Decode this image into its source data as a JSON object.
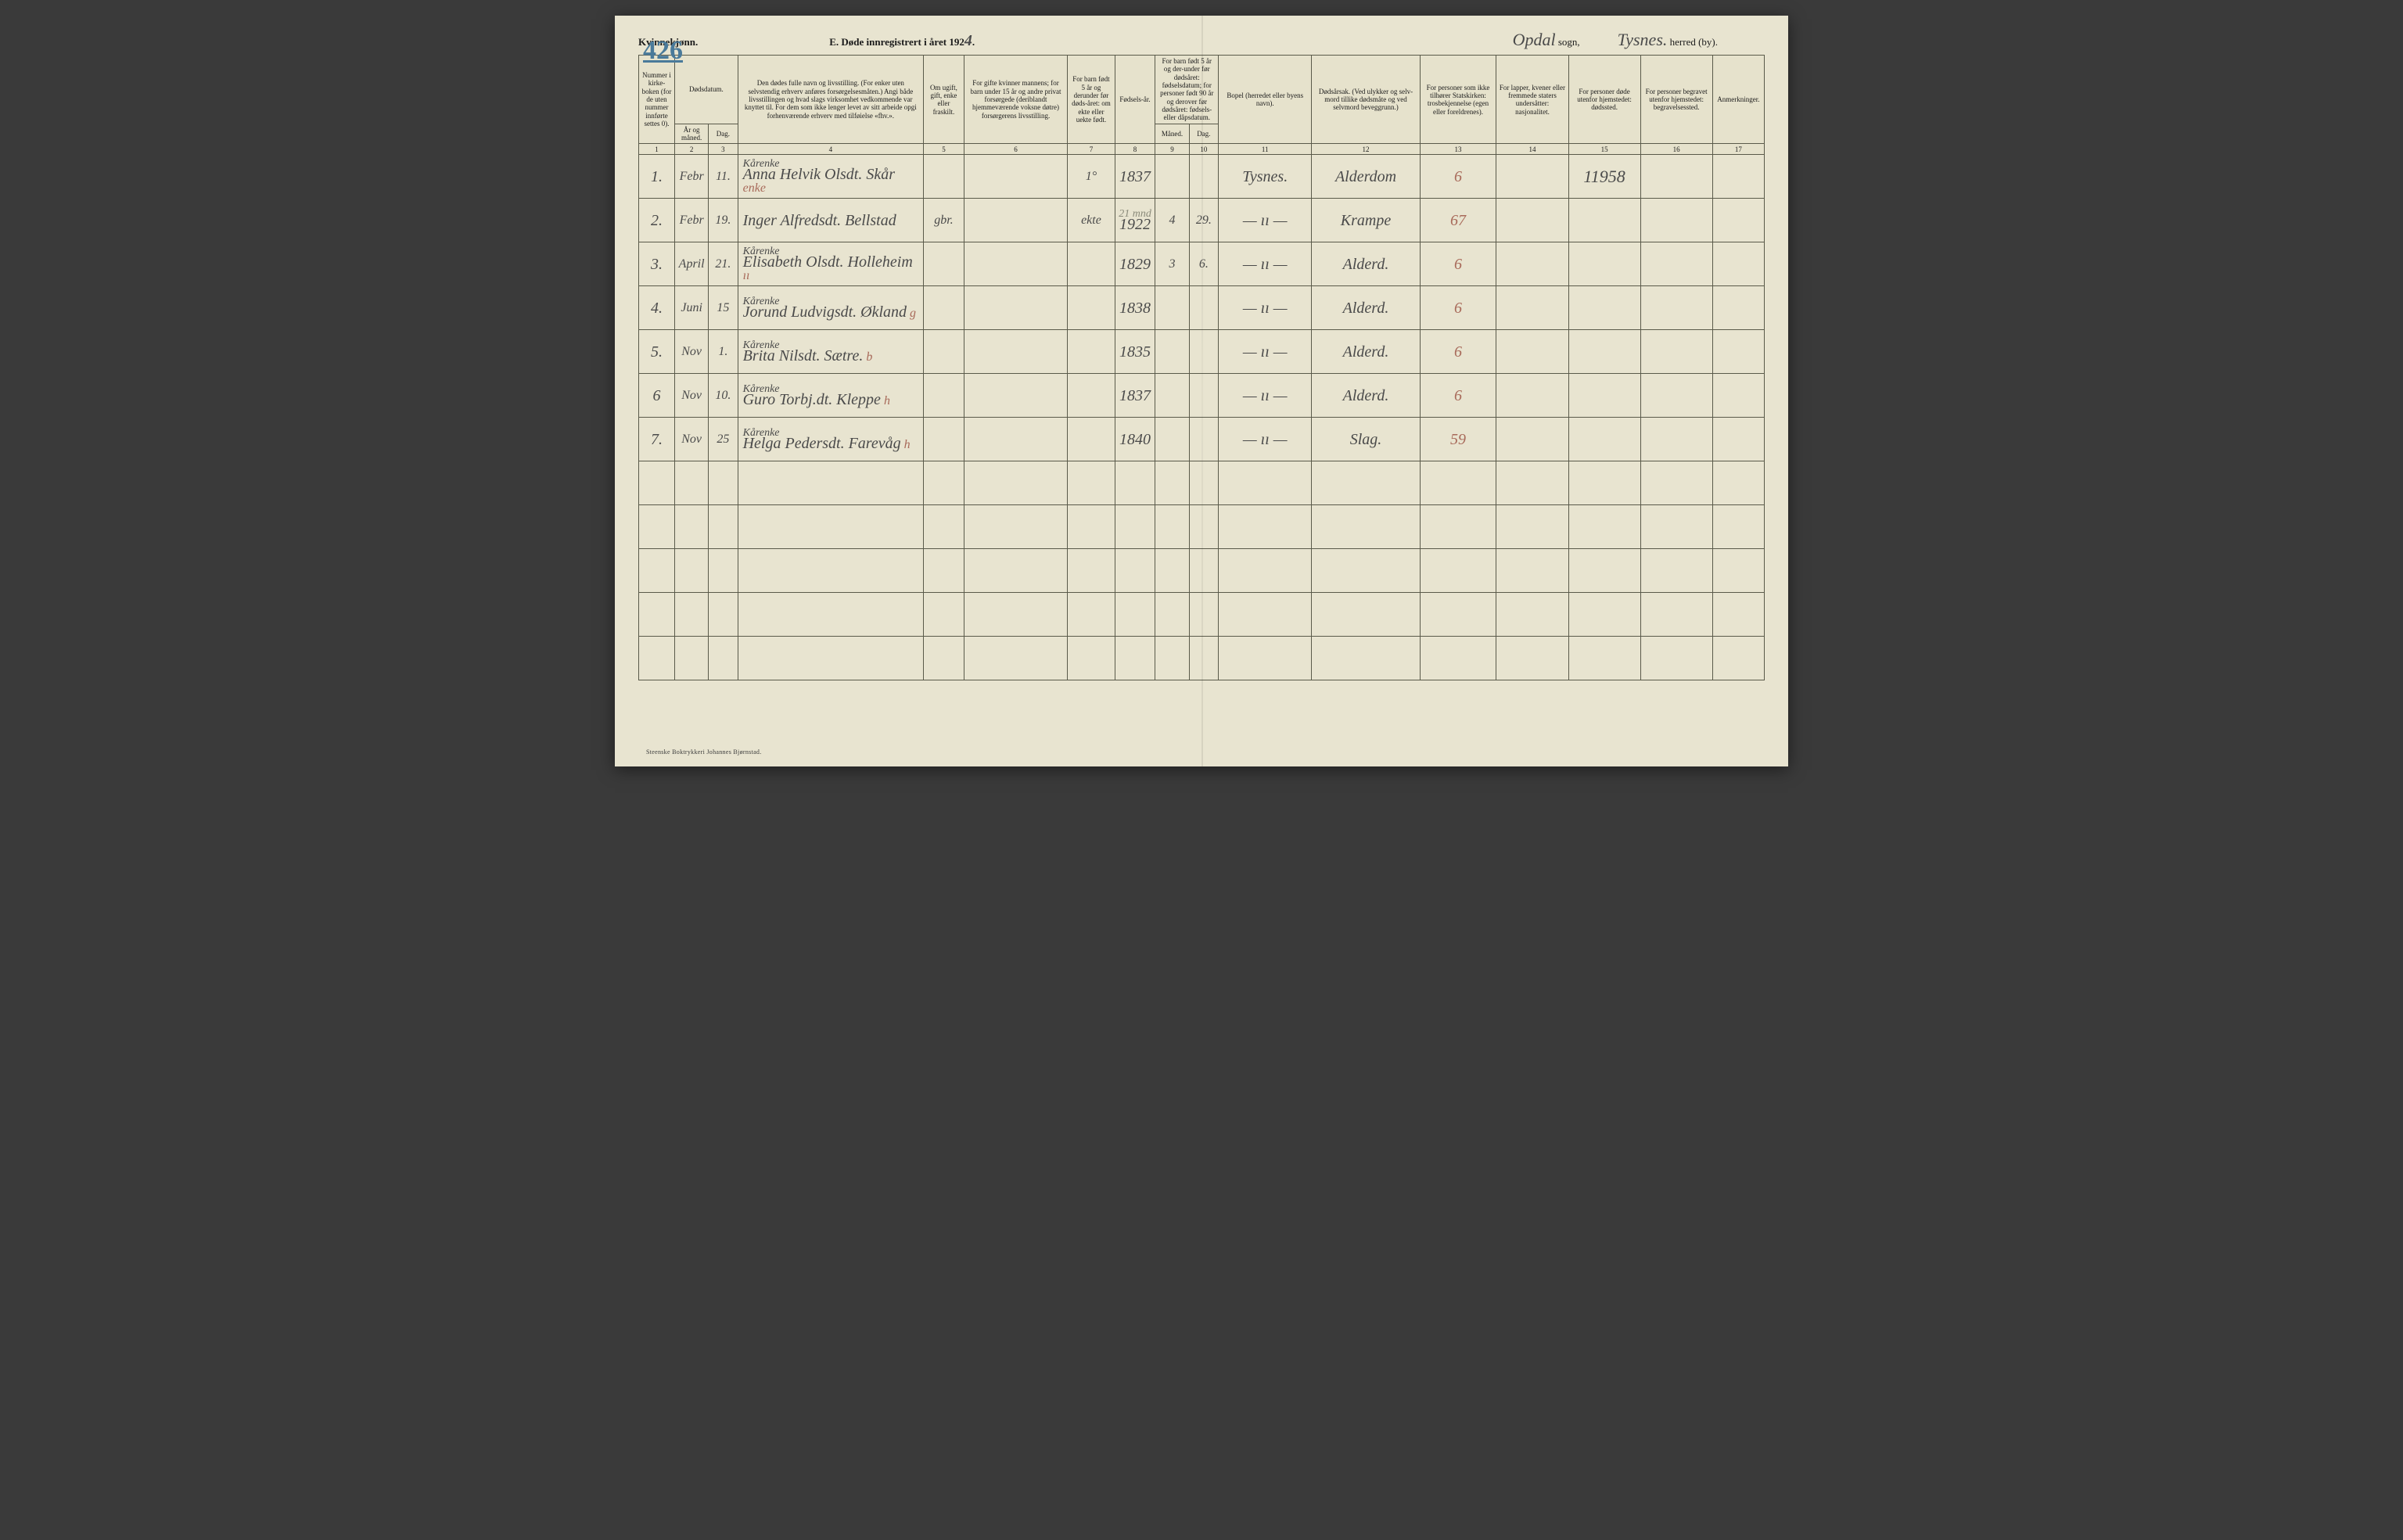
{
  "header": {
    "gender_label": "Kvinnekjønn.",
    "page_number_hw": "426",
    "title_prefix": "E.  Døde innregistrert i året 192",
    "year_suffix_hw": "4",
    "title_period": ".",
    "sogn_hw": "Opdal",
    "sogn_label": "sogn,",
    "herred_hw": "Tysnes.",
    "herred_label": "herred (by)."
  },
  "columns": {
    "c1": "Nummer i kirke-boken (for de uten nummer innførte settes 0).",
    "c2_3_group": "Dødsdatum.",
    "c2": "År og måned.",
    "c3": "Dag.",
    "c4": "Den dødes fulle navn og livsstilling. (For enker uten selvstendig erhverv anføres forsørgelsesmåten.) Angi både livsstillingen og hvad slags virksomhet vedkommende var knyttet til. For dem som ikke lenger levet av sitt arbeide opgi forhenværende erhverv med tilføielse «fhv.».",
    "c5": "Om ugift, gift, enke eller fraskilt.",
    "c6": "For gifte kvinner mannens; for barn under 15 år og andre privat forsørgede (deriblandt hjemmeværende voksne døtre) forsørgerens livsstilling.",
    "c7": "For barn født 5 år og derunder før døds-året: om ekte eller uekte født.",
    "c8": "Fødsels-år.",
    "c9_10_group": "For barn født 5 år og der-under før dødsåret: fødselsdatum; for personer født 90 år og derover før dødsåret: fødsels- eller dåpsdatum.",
    "c9": "Måned.",
    "c10": "Dag.",
    "c11": "Bopel (herredet eller byens navn).",
    "c12": "Dødsårsak. (Ved ulykker og selv-mord tillike dødsmåte og ved selvmord beveggrunn.)",
    "c13": "For personer som ikke tilhører Statskirken: trosbekjennelse (egen eller foreldrenes).",
    "c14": "For lapper, kvener eller fremmede staters undersåtter: nasjonalitet.",
    "c15": "For personer døde utenfor hjemstedet: dødssted.",
    "c16": "For personer begravet utenfor hjemstedet: begravelsessted.",
    "c17": "Anmerkninger."
  },
  "colnums": [
    "1",
    "2",
    "3",
    "4",
    "5",
    "6",
    "7",
    "8",
    "9",
    "10",
    "11",
    "12",
    "13",
    "14",
    "15",
    "16",
    "17"
  ],
  "rows": [
    {
      "n": "1.",
      "mon": "Febr",
      "day": "11.",
      "status": "Kårenke",
      "name": "Anna Helvik Olsdt. Skår",
      "name_suffix": "enke",
      "c5": "",
      "c6": "",
      "c7": "1°",
      "c8": "1837",
      "c9": "",
      "c10": "",
      "c11": "Tysnes.",
      "c12": "Alderdom",
      "c13": "6",
      "c14": "",
      "c15": "11958",
      "c16": "",
      "c17": ""
    },
    {
      "n": "2.",
      "mon": "Febr",
      "day": "19.",
      "status": "",
      "name": "Inger Alfredsdt. Bellstad",
      "name_suffix": "",
      "c5": "gbr.",
      "c6": "",
      "c7": "ekte",
      "c8": "1922",
      "c8_above": "21 mnd",
      "c9": "4",
      "c10": "29.",
      "c11": "— ıı —",
      "c12": "Krampe",
      "c13": "67",
      "c14": "",
      "c15": "",
      "c16": "",
      "c17": ""
    },
    {
      "n": "3.",
      "mon": "April",
      "day": "21.",
      "status": "Kårenke",
      "name": "Elisabeth Olsdt. Holleheim",
      "name_suffix": "ıı",
      "c5": "",
      "c6": "",
      "c7": "",
      "c8": "1829",
      "c9": "3",
      "c10": "6.",
      "c11": "— ıı —",
      "c12": "Alderd.",
      "c13": "6",
      "c14": "",
      "c15": "",
      "c16": "",
      "c17": ""
    },
    {
      "n": "4.",
      "mon": "Juni",
      "day": "15",
      "status": "Kårenke",
      "name": "Jorund Ludvigsdt. Økland",
      "name_suffix": "g",
      "c5": "",
      "c6": "",
      "c7": "",
      "c8": "1838",
      "c9": "",
      "c10": "",
      "c11": "— ıı —",
      "c12": "Alderd.",
      "c13": "6",
      "c14": "",
      "c15": "",
      "c16": "",
      "c17": ""
    },
    {
      "n": "5.",
      "mon": "Nov",
      "day": "1.",
      "status": "Kårenke",
      "name": "Brita Nilsdt. Sætre.",
      "name_suffix": "b",
      "c5": "",
      "c6": "",
      "c7": "",
      "c8": "1835",
      "c9": "",
      "c10": "",
      "c11": "— ıı —",
      "c12": "Alderd.",
      "c13": "6",
      "c14": "",
      "c15": "",
      "c16": "",
      "c17": ""
    },
    {
      "n": "6",
      "mon": "Nov",
      "day": "10.",
      "status": "Kårenke",
      "name": "Guro Torbj.dt. Kleppe",
      "name_suffix": "h",
      "c5": "",
      "c6": "",
      "c7": "",
      "c8": "1837",
      "c9": "",
      "c10": "",
      "c11": "— ıı —",
      "c12": "Alderd.",
      "c13": "6",
      "c14": "",
      "c15": "",
      "c16": "",
      "c17": ""
    },
    {
      "n": "7.",
      "mon": "Nov",
      "day": "25",
      "status": "Kårenke",
      "name": "Helga Pedersdt. Farevåg",
      "name_suffix": "h",
      "c5": "",
      "c6": "",
      "c7": "",
      "c8": "1840",
      "c9": "",
      "c10": "",
      "c11": "— ıı —",
      "c12": "Slag.",
      "c13": "59",
      "c14": "",
      "c15": "",
      "c16": "",
      "c17": ""
    }
  ],
  "empty_rows": 5,
  "imprint": "Steenske Boktrykkeri Johannes Bjørnstad.",
  "col_widths_pct": [
    3.2,
    3.0,
    2.6,
    16.5,
    3.6,
    9.2,
    4.2,
    3.6,
    3.0,
    2.6,
    8.3,
    9.6,
    6.8,
    6.4,
    6.4,
    6.4,
    4.6
  ],
  "colors": {
    "paper": "#e8e4d0",
    "ink": "#1a1a1a",
    "rule": "#5a5a4a",
    "handwriting": "#4a4a4a",
    "blue_pencil": "#4a7a9a",
    "red_pencil": "#a86a5a"
  }
}
